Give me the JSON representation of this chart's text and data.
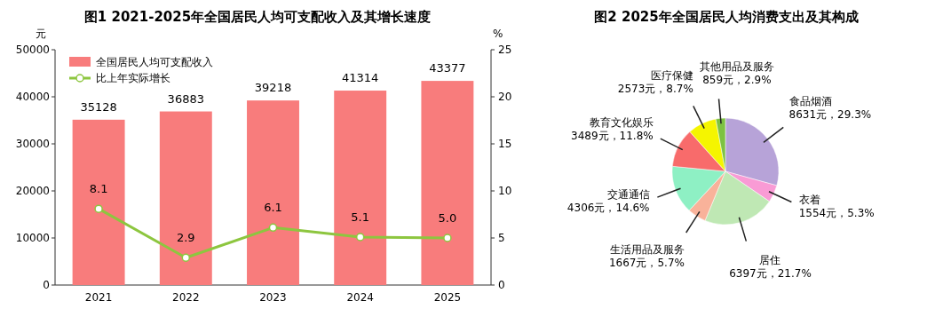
{
  "chart_data": [
    {
      "type": "bar",
      "title": "图1 2021-2025年全国居民人均可支配收入及其增长速度",
      "ylabel": "元",
      "y2label": "%",
      "categories": [
        "2021",
        "2022",
        "2023",
        "2024",
        "2025"
      ],
      "series": [
        {
          "name": "全国居民人均可支配收入",
          "type": "bar",
          "color": "#f87c7c",
          "values": [
            35128,
            36883,
            39218,
            41314,
            43377
          ]
        },
        {
          "name": "比上年实际增长",
          "type": "line",
          "axis": "y2",
          "color": "#8dc63f",
          "marker": "circle",
          "values": [
            8.1,
            2.9,
            6.1,
            5.1,
            5.0
          ],
          "value_labels": [
            "8.1",
            "2.9",
            "6.1",
            "5.1",
            "5.0"
          ]
        }
      ],
      "ylim": [
        0,
        50000
      ],
      "yticks": [
        0,
        10000,
        20000,
        30000,
        40000,
        50000
      ],
      "y2lim": [
        0,
        25
      ],
      "y2ticks": [
        0,
        5,
        10,
        15,
        20,
        25
      ],
      "data_labels": true,
      "legend": "top left"
    },
    {
      "type": "pie",
      "title": "图2 2025年全国居民人均消费支出及其构成",
      "categories": [
        "食品烟酒",
        "衣着",
        "居住",
        "生活用品及服务",
        "交通通信",
        "教育文化娱乐",
        "医疗保健",
        "其他用品及服务"
      ],
      "values": [
        8631,
        1554,
        6397,
        1667,
        4306,
        3489,
        2573,
        859
      ],
      "colors": [
        "#b7a3d8",
        "#f99bd5",
        "#bfe8b4",
        "#f9b29a",
        "#8ef0c4",
        "#f86b6b",
        "#f5f500",
        "#7dc242"
      ],
      "value_labels": [
        "8631元，29.3%",
        "1554元，5.3%",
        "6397元，21.7%",
        "1667元，5.7%",
        "4306元，14.6%",
        "3489元，11.8%",
        "2573元，8.7%",
        "859元，2.9%"
      ]
    }
  ]
}
